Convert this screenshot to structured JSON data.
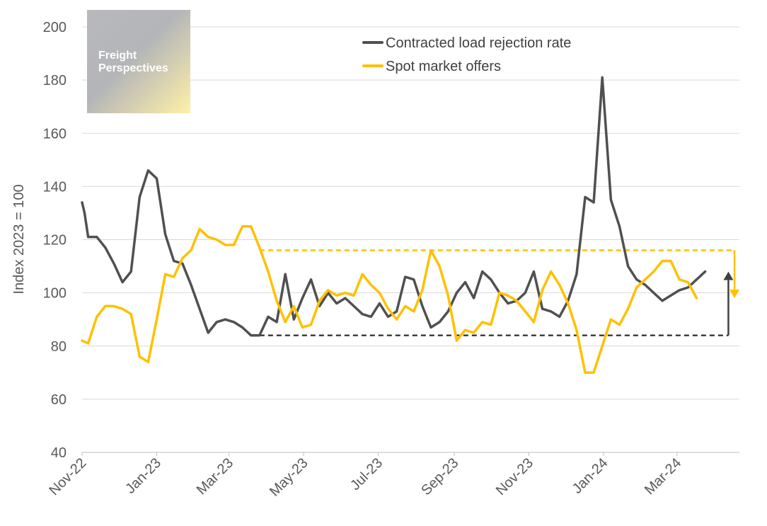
{
  "chart_data": {
    "type": "line",
    "ylabel": "Index 2023 = 100",
    "ylim": [
      40,
      200
    ],
    "yticks": [
      40,
      60,
      80,
      100,
      120,
      140,
      160,
      180,
      200
    ],
    "xlim": [
      "2022-11-01",
      "2024-04-21"
    ],
    "xticks": [
      {
        "date": "2022-11-01",
        "label": "Nov-22"
      },
      {
        "date": "2023-01-01",
        "label": "Jan-23"
      },
      {
        "date": "2023-03-01",
        "label": "Mar-23"
      },
      {
        "date": "2023-05-01",
        "label": "May-23"
      },
      {
        "date": "2023-07-01",
        "label": "Jul-23"
      },
      {
        "date": "2023-09-01",
        "label": "Sep-23"
      },
      {
        "date": "2023-11-01",
        "label": "Nov-23"
      },
      {
        "date": "2024-01-01",
        "label": "Jan-24"
      },
      {
        "date": "2024-03-01",
        "label": "Mar-24"
      }
    ],
    "legend_position": "top",
    "grid": true,
    "series": [
      {
        "name": "Contracted load rejection rate",
        "color": "#505050",
        "points": [
          [
            "2022-11-01",
            134
          ],
          [
            "2022-11-03",
            130
          ],
          [
            "2022-11-06",
            121
          ],
          [
            "2022-11-13",
            121
          ],
          [
            "2022-11-20",
            117
          ],
          [
            "2022-11-27",
            111
          ],
          [
            "2022-12-04",
            104
          ],
          [
            "2022-12-11",
            108
          ],
          [
            "2022-12-18",
            136
          ],
          [
            "2022-12-25",
            146
          ],
          [
            "2023-01-01",
            143
          ],
          [
            "2023-01-08",
            122
          ],
          [
            "2023-01-15",
            112
          ],
          [
            "2023-01-22",
            111
          ],
          [
            "2023-01-29",
            103
          ],
          [
            "2023-02-05",
            94
          ],
          [
            "2023-02-12",
            85
          ],
          [
            "2023-02-19",
            89
          ],
          [
            "2023-02-26",
            90
          ],
          [
            "2023-03-05",
            89
          ],
          [
            "2023-03-12",
            87
          ],
          [
            "2023-03-19",
            84
          ],
          [
            "2023-03-26",
            84
          ],
          [
            "2023-04-02",
            91
          ],
          [
            "2023-04-09",
            89
          ],
          [
            "2023-04-16",
            107
          ],
          [
            "2023-04-23",
            90
          ],
          [
            "2023-04-30",
            98
          ],
          [
            "2023-05-07",
            105
          ],
          [
            "2023-05-14",
            95
          ],
          [
            "2023-05-21",
            100
          ],
          [
            "2023-05-28",
            96
          ],
          [
            "2023-06-04",
            98
          ],
          [
            "2023-06-11",
            95
          ],
          [
            "2023-06-18",
            92
          ],
          [
            "2023-06-25",
            91
          ],
          [
            "2023-07-02",
            96
          ],
          [
            "2023-07-09",
            91
          ],
          [
            "2023-07-16",
            93
          ],
          [
            "2023-07-23",
            106
          ],
          [
            "2023-07-30",
            105
          ],
          [
            "2023-08-06",
            95
          ],
          [
            "2023-08-13",
            87
          ],
          [
            "2023-08-20",
            89
          ],
          [
            "2023-08-27",
            93
          ],
          [
            "2023-09-03",
            100
          ],
          [
            "2023-09-10",
            104
          ],
          [
            "2023-09-17",
            98
          ],
          [
            "2023-09-24",
            108
          ],
          [
            "2023-10-01",
            105
          ],
          [
            "2023-10-08",
            100
          ],
          [
            "2023-10-15",
            96
          ],
          [
            "2023-10-22",
            97
          ],
          [
            "2023-10-29",
            100
          ],
          [
            "2023-11-05",
            108
          ],
          [
            "2023-11-12",
            94
          ],
          [
            "2023-11-19",
            93
          ],
          [
            "2023-11-26",
            91
          ],
          [
            "2023-12-03",
            97
          ],
          [
            "2023-12-10",
            107
          ],
          [
            "2023-12-17",
            136
          ],
          [
            "2023-12-24",
            134
          ],
          [
            "2023-12-31",
            181
          ],
          [
            "2024-01-07",
            135
          ],
          [
            "2024-01-14",
            125
          ],
          [
            "2024-01-21",
            110
          ],
          [
            "2024-01-28",
            105
          ],
          [
            "2024-02-04",
            103
          ],
          [
            "2024-02-11",
            100
          ],
          [
            "2024-02-18",
            97
          ],
          [
            "2024-02-25",
            99
          ],
          [
            "2024-03-03",
            101
          ],
          [
            "2024-03-10",
            102
          ],
          [
            "2024-03-17",
            105
          ],
          [
            "2024-03-24",
            108
          ]
        ]
      },
      {
        "name": "Spot market offers",
        "color": "#FFC000",
        "points": [
          [
            "2022-11-01",
            82
          ],
          [
            "2022-11-06",
            81
          ],
          [
            "2022-11-13",
            91
          ],
          [
            "2022-11-20",
            95
          ],
          [
            "2022-11-27",
            95
          ],
          [
            "2022-12-04",
            94
          ],
          [
            "2022-12-11",
            92
          ],
          [
            "2022-12-18",
            76
          ],
          [
            "2022-12-25",
            74
          ],
          [
            "2023-01-01",
            90
          ],
          [
            "2023-01-08",
            107
          ],
          [
            "2023-01-15",
            106
          ],
          [
            "2023-01-22",
            113
          ],
          [
            "2023-01-29",
            116
          ],
          [
            "2023-02-05",
            124
          ],
          [
            "2023-02-12",
            121
          ],
          [
            "2023-02-19",
            120
          ],
          [
            "2023-02-26",
            118
          ],
          [
            "2023-03-05",
            118
          ],
          [
            "2023-03-12",
            125
          ],
          [
            "2023-03-19",
            125
          ],
          [
            "2023-03-26",
            117
          ],
          [
            "2023-04-02",
            108
          ],
          [
            "2023-04-09",
            97
          ],
          [
            "2023-04-16",
            89
          ],
          [
            "2023-04-23",
            95
          ],
          [
            "2023-04-30",
            87
          ],
          [
            "2023-05-07",
            88
          ],
          [
            "2023-05-14",
            97
          ],
          [
            "2023-05-21",
            101
          ],
          [
            "2023-05-28",
            99
          ],
          [
            "2023-06-04",
            100
          ],
          [
            "2023-06-11",
            99
          ],
          [
            "2023-06-18",
            107
          ],
          [
            "2023-06-25",
            103
          ],
          [
            "2023-07-02",
            100
          ],
          [
            "2023-07-09",
            94
          ],
          [
            "2023-07-16",
            90
          ],
          [
            "2023-07-23",
            95
          ],
          [
            "2023-07-30",
            93
          ],
          [
            "2023-08-06",
            101
          ],
          [
            "2023-08-13",
            116
          ],
          [
            "2023-08-20",
            110
          ],
          [
            "2023-08-27",
            99
          ],
          [
            "2023-09-03",
            82
          ],
          [
            "2023-09-10",
            86
          ],
          [
            "2023-09-17",
            85
          ],
          [
            "2023-09-24",
            89
          ],
          [
            "2023-10-01",
            88
          ],
          [
            "2023-10-08",
            100
          ],
          [
            "2023-10-15",
            99
          ],
          [
            "2023-10-22",
            97
          ],
          [
            "2023-10-29",
            93
          ],
          [
            "2023-11-05",
            89
          ],
          [
            "2023-11-12",
            101
          ],
          [
            "2023-11-19",
            108
          ],
          [
            "2023-11-26",
            103
          ],
          [
            "2023-12-03",
            96
          ],
          [
            "2023-12-10",
            86
          ],
          [
            "2023-12-17",
            70
          ],
          [
            "2023-12-24",
            70
          ],
          [
            "2023-12-31",
            80
          ],
          [
            "2024-01-07",
            90
          ],
          [
            "2024-01-14",
            88
          ],
          [
            "2024-01-21",
            94
          ],
          [
            "2024-01-28",
            102
          ],
          [
            "2024-02-04",
            105
          ],
          [
            "2024-02-11",
            108
          ],
          [
            "2024-02-18",
            112
          ],
          [
            "2024-02-25",
            112
          ],
          [
            "2024-03-03",
            105
          ],
          [
            "2024-03-10",
            104
          ],
          [
            "2024-03-17",
            98
          ]
        ]
      }
    ],
    "reference_lines": [
      {
        "series": "Spot market offers",
        "y": 116,
        "from": "2023-03-26",
        "to": "2024-04-17",
        "style": "dashed",
        "arrow": "down",
        "arrow_to": 98,
        "color": "#FFC000"
      },
      {
        "series": "Contracted load rejection rate",
        "y": 84,
        "from": "2023-03-26",
        "to": "2024-04-12",
        "style": "dashed",
        "arrow": "up",
        "arrow_to": 108,
        "color": "#404040"
      }
    ]
  },
  "branding": {
    "logo_text": "Freight Perspectives"
  }
}
